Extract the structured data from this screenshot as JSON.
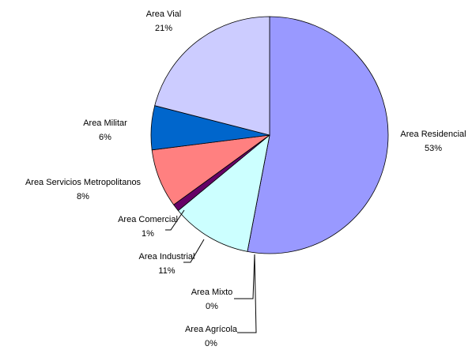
{
  "chart_data": {
    "type": "pie",
    "labels": [
      "Area Residencial",
      "Area Mixto",
      "Area Agrícola",
      "Area Industrial",
      "Area Comercial",
      "Area Servicios Metropolitanos",
      "Area Militar",
      "Area Vial"
    ],
    "values": [
      53,
      0,
      0,
      11,
      1,
      8,
      6,
      21
    ],
    "value_labels": [
      "53%",
      "0%",
      "0%",
      "11%",
      "1%",
      "8%",
      "6%",
      "21%"
    ],
    "colors": [
      "#9999ff",
      "#ffffcc",
      "#800000",
      "#ccffff",
      "#660066",
      "#ff8080",
      "#0066cc",
      "#ccccff"
    ]
  }
}
